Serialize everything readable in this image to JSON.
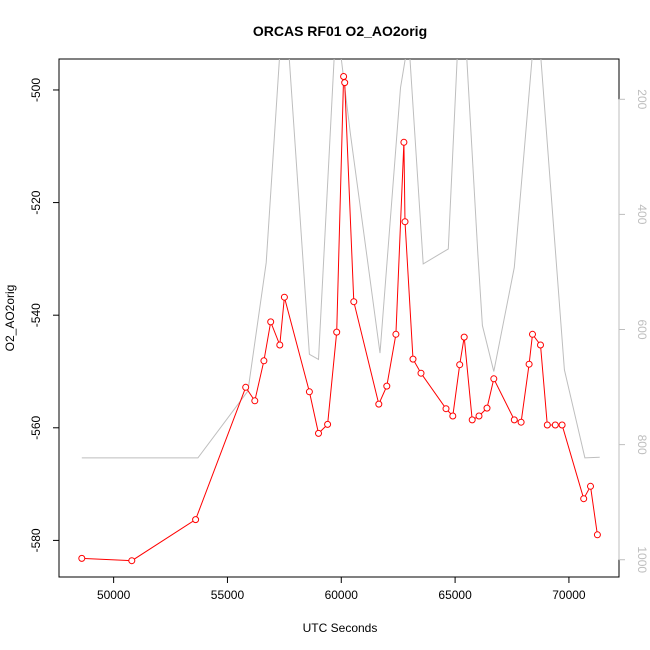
{
  "chart_data": {
    "type": "line",
    "title": "ORCAS RF01 O2_AO2orig",
    "xlabel": "UTC Seconds",
    "ylabel": "O2_AO2orig",
    "ylabel_right": "",
    "xlim": [
      47600,
      72200
    ],
    "ylim": [
      -586.5,
      -494.5
    ],
    "ylim_right": [
      130,
      1030
    ],
    "right_axis_reversed": true,
    "x_ticks": [
      50000,
      55000,
      60000,
      65000,
      70000
    ],
    "x_tick_labels": [
      "50000",
      "55000",
      "60000",
      "65000",
      "70000"
    ],
    "y_ticks": [
      -580,
      -560,
      -540,
      -520,
      -500
    ],
    "y_tick_labels": [
      "-580",
      "-560",
      "-540",
      "-520",
      "-500"
    ],
    "y_right_ticks": [
      200,
      400,
      600,
      800,
      1000
    ],
    "y_right_tick_labels": [
      "200",
      "400",
      "600",
      "800",
      "1000"
    ],
    "grid": false,
    "legend": "none",
    "series": [
      {
        "axis": "left",
        "style": "line-points",
        "color": "#ff0000",
        "points": [
          [
            48600,
            -583.2
          ],
          [
            50800,
            -583.6
          ],
          [
            53600,
            -576.3
          ],
          [
            55800,
            -552.8
          ],
          [
            56200,
            -555.2
          ],
          [
            56600,
            -548.1
          ],
          [
            56900,
            -541.2
          ],
          [
            57300,
            -545.3
          ],
          [
            57500,
            -536.8
          ],
          [
            58600,
            -553.6
          ],
          [
            59000,
            -561.0
          ],
          [
            59400,
            -559.4
          ],
          [
            59800,
            -543.0
          ],
          [
            60100,
            -497.6
          ],
          [
            60150,
            -498.7
          ],
          [
            60550,
            -537.6
          ],
          [
            61650,
            -555.8
          ],
          [
            62000,
            -552.6
          ],
          [
            62400,
            -543.4
          ],
          [
            62750,
            -509.3
          ],
          [
            62800,
            -523.4
          ],
          [
            63150,
            -547.8
          ],
          [
            63500,
            -550.3
          ],
          [
            64600,
            -556.6
          ],
          [
            64900,
            -557.9
          ],
          [
            65200,
            -548.8
          ],
          [
            65400,
            -543.9
          ],
          [
            65750,
            -558.6
          ],
          [
            66050,
            -557.9
          ],
          [
            66400,
            -556.5
          ],
          [
            66700,
            -551.3
          ],
          [
            67600,
            -558.6
          ],
          [
            67900,
            -559.0
          ],
          [
            68250,
            -548.7
          ],
          [
            68400,
            -543.4
          ],
          [
            68750,
            -545.3
          ],
          [
            69050,
            -559.5
          ],
          [
            69400,
            -559.5
          ],
          [
            69700,
            -559.5
          ],
          [
            70650,
            -572.6
          ],
          [
            70950,
            -570.4
          ],
          [
            71250,
            -579.0
          ]
        ]
      },
      {
        "axis": "right",
        "style": "line",
        "color": "#bebebe",
        "points": [
          [
            48600,
            823
          ],
          [
            53700,
            823
          ],
          [
            55900,
            707
          ],
          [
            56700,
            484
          ],
          [
            57300,
            120
          ],
          [
            57700,
            120
          ],
          [
            58600,
            643
          ],
          [
            59000,
            652
          ],
          [
            59700,
            120
          ],
          [
            60000,
            130
          ],
          [
            60400,
            260
          ],
          [
            61700,
            641
          ],
          [
            62600,
            180
          ],
          [
            62850,
            120
          ],
          [
            63000,
            120
          ],
          [
            63600,
            486
          ],
          [
            64700,
            460
          ],
          [
            65100,
            120
          ],
          [
            65500,
            120
          ],
          [
            66000,
            470
          ],
          [
            66200,
            593
          ],
          [
            66700,
            673
          ],
          [
            67600,
            492
          ],
          [
            68400,
            120
          ],
          [
            68750,
            120
          ],
          [
            69800,
            670
          ],
          [
            70700,
            823
          ],
          [
            71350,
            822
          ]
        ]
      }
    ]
  }
}
